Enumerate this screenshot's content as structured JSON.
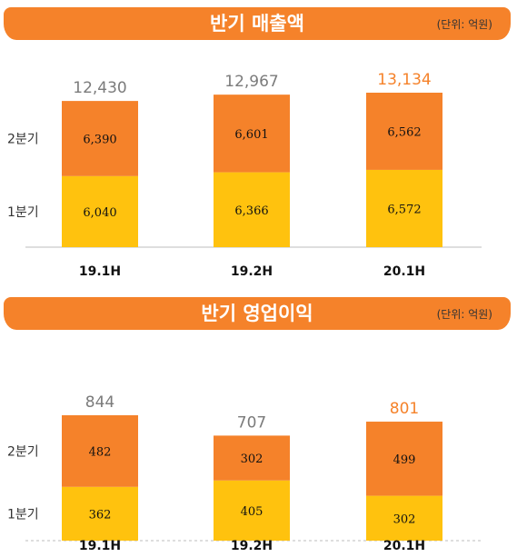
{
  "colors": {
    "header": "#f5822a",
    "q2": "#f5822a",
    "q1": "#ffc20e",
    "highlight_label": "#f5822a"
  },
  "chart_data": [
    {
      "type": "bar",
      "stacked": true,
      "title": "반기 매출액",
      "unit": "(단위: 억원)",
      "categories": [
        "19.1H",
        "19.2H",
        "20.1H"
      ],
      "series": [
        {
          "name": "1분기",
          "values": [
            6040,
            6366,
            6572
          ]
        },
        {
          "name": "2분기",
          "values": [
            6390,
            6601,
            6562
          ]
        }
      ],
      "totals": [
        12430,
        12967,
        13134
      ],
      "total_labels": [
        "12,430",
        "12,967",
        "13,134"
      ],
      "segment_labels": [
        [
          "6,040",
          "6,366",
          "6,572"
        ],
        [
          "6,390",
          "6,601",
          "6,562"
        ]
      ],
      "highlight_index": 2,
      "ylim": [
        0,
        13134
      ]
    },
    {
      "type": "bar",
      "stacked": true,
      "title": "반기 영업이익",
      "unit": "(단위: 억원)",
      "categories": [
        "19.1H",
        "19.2H",
        "20.1H"
      ],
      "series": [
        {
          "name": "1분기",
          "values": [
            362,
            405,
            302
          ]
        },
        {
          "name": "2분기",
          "values": [
            482,
            302,
            499
          ]
        }
      ],
      "totals": [
        844,
        707,
        801
      ],
      "total_labels": [
        "844",
        "707",
        "801"
      ],
      "segment_labels": [
        [
          "362",
          "405",
          "302"
        ],
        [
          "482",
          "302",
          "499"
        ]
      ],
      "highlight_index": 2,
      "ylim": [
        0,
        844
      ]
    }
  ]
}
